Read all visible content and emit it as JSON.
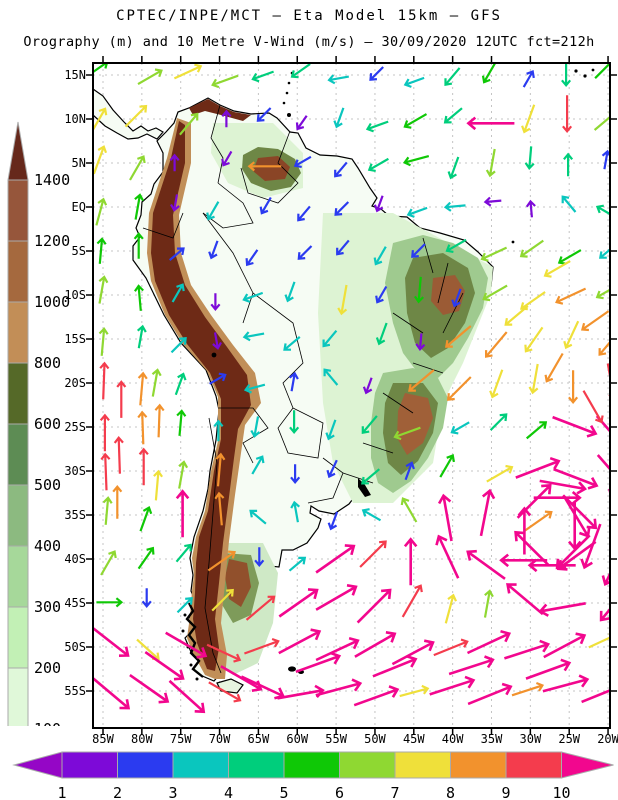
{
  "header": {
    "title_line1": "CPTEC/INPE/MCT —  Eta Model 15km — GFS",
    "title_line2": "Orography (m) and 10 Metre V-Wind (m/s) — 30/09/2020 12UTC fct=212h"
  },
  "elevation_legend": {
    "unit": "m",
    "labels": [
      "1400",
      "1200",
      "1000",
      "800",
      "600",
      "500",
      "400",
      "300",
      "200",
      "100"
    ],
    "segment_colors": [
      "#96563B",
      "#A5693E",
      "#C28E57",
      "#556928",
      "#5D8C54",
      "#8CBA80",
      "#A6D89A",
      "#C2F0B5",
      "#E0F8D9"
    ],
    "top_arrow_color": "#66281B",
    "bottom_arrow_color": "#FFFFFF",
    "border_color": "#AAAAAA"
  },
  "wind_legend": {
    "unit": "m/s",
    "labels": [
      "1",
      "2",
      "3",
      "4",
      "5",
      "6",
      "7",
      "8",
      "9",
      "10"
    ],
    "segment_colors": [
      "#7D0AD8",
      "#2B3BF0",
      "#0AC6BE",
      "#00CE7C",
      "#0FC806",
      "#8FD832",
      "#EFE03A",
      "#F2922D",
      "#F43C4D"
    ],
    "left_arrow_color": "#9506C6",
    "right_arrow_color": "#F2078E",
    "border_color": "#AAAAAA"
  },
  "map": {
    "lat_labels": [
      "15N",
      "10N",
      "5N",
      "EQ",
      "5S",
      "10S",
      "15S",
      "20S",
      "25S",
      "30S",
      "35S",
      "40S",
      "45S",
      "50S",
      "55S"
    ],
    "lon_labels": [
      "85W",
      "80W",
      "75W",
      "70W",
      "65W",
      "60W",
      "55W",
      "50W",
      "45W",
      "40W",
      "35W",
      "30W",
      "25W",
      "20W"
    ],
    "grid_color": "#C4C4C4"
  },
  "chart_data": {
    "type": "map",
    "subtype": "vector-field-over-orography",
    "source": "CPTEC/INPE/MCT",
    "model": "Eta Model 15km",
    "boundary_driver": "GFS",
    "shaded_field": "Orography (m)",
    "vector_field": "10 Metre V-Wind (m/s)",
    "valid_time": "30/09/2020 12UTC",
    "forecast": "fct=212h",
    "lat_range": [
      "15N",
      "55S"
    ],
    "lon_range": [
      "85W",
      "20W"
    ],
    "orography_scale_m": [
      100,
      200,
      300,
      400,
      500,
      600,
      800,
      1000,
      1200,
      1400
    ],
    "wind_speed_scale_ms": [
      1,
      2,
      3,
      4,
      5,
      6,
      7,
      8,
      9,
      10
    ],
    "features": {
      "pacific_coastal_jet": "8-10 m/s northward arrows off Chile/Peru coast",
      "amazon_interior": "weak 1-3 m/s southward arrows (violet/blue/cyan)",
      "atlantic_trades": "4-8 m/s southwestward arrows off NE Brazil",
      "south_atlantic_cyclone": "clockwise >10 m/s (magenta) vortex near 27.5W 36.5S",
      "southern_westerlies": ">10 m/s magenta arrows south of 45S",
      "andes": "dark brown orography band above 1400 m"
    },
    "wind_arrows_format": "[lon_deg_W, lat_deg, direction_deg_math(0=E,90=N), speed_class_1_to_10]",
    "wind_arrows": [
      [
        85,
        15,
        35,
        5
      ],
      [
        80,
        15,
        30,
        6
      ],
      [
        75,
        15,
        25,
        7
      ],
      [
        70,
        15,
        200,
        6
      ],
      [
        65,
        15,
        200,
        4
      ],
      [
        60,
        15,
        215,
        4
      ],
      [
        55,
        15,
        190,
        3
      ],
      [
        50,
        15,
        225,
        2
      ],
      [
        45,
        15,
        200,
        3
      ],
      [
        40,
        15,
        230,
        4
      ],
      [
        35,
        15,
        240,
        5
      ],
      [
        30,
        15,
        60,
        2
      ],
      [
        25,
        15,
        270,
        4
      ],
      [
        20,
        15,
        45,
        5
      ],
      [
        85,
        10,
        60,
        7
      ],
      [
        80,
        10,
        45,
        7
      ],
      [
        75,
        10,
        50,
        6
      ],
      [
        70,
        10,
        90,
        1
      ],
      [
        65,
        10,
        225,
        2
      ],
      [
        60,
        10,
        235,
        1
      ],
      [
        55,
        10,
        250,
        3
      ],
      [
        50,
        10,
        200,
        4
      ],
      [
        45,
        10,
        210,
        5
      ],
      [
        40,
        10,
        220,
        4
      ],
      [
        35,
        10,
        180,
        10
      ],
      [
        30,
        10,
        250,
        7
      ],
      [
        25,
        10,
        270,
        9
      ],
      [
        20,
        10,
        40,
        6
      ],
      [
        85,
        5,
        70,
        7
      ],
      [
        80,
        5,
        60,
        6
      ],
      [
        75,
        5,
        90,
        1
      ],
      [
        70,
        5,
        240,
        1
      ],
      [
        65,
        5,
        180,
        8
      ],
      [
        60,
        5,
        210,
        2
      ],
      [
        55,
        5,
        230,
        2
      ],
      [
        50,
        5,
        210,
        4
      ],
      [
        45,
        5,
        195,
        5
      ],
      [
        40,
        5,
        250,
        4
      ],
      [
        35,
        5,
        260,
        6
      ],
      [
        30,
        5,
        265,
        4
      ],
      [
        25,
        5,
        90,
        4
      ],
      [
        20,
        5,
        80,
        2
      ],
      [
        85,
        0,
        75,
        6
      ],
      [
        80,
        0,
        80,
        5
      ],
      [
        75,
        0,
        260,
        1
      ],
      [
        70,
        0,
        240,
        3
      ],
      [
        65,
        0,
        240,
        2
      ],
      [
        60,
        0,
        230,
        2
      ],
      [
        55,
        0,
        225,
        2
      ],
      [
        50,
        0,
        250,
        1
      ],
      [
        45,
        0,
        200,
        3
      ],
      [
        40,
        0,
        185,
        3
      ],
      [
        35,
        0,
        185,
        1
      ],
      [
        30,
        0,
        95,
        1
      ],
      [
        25,
        0,
        130,
        3
      ],
      [
        20,
        0,
        150,
        4
      ],
      [
        85,
        -5,
        85,
        5
      ],
      [
        80,
        -5,
        90,
        5
      ],
      [
        75,
        -5,
        40,
        2
      ],
      [
        70,
        -5,
        250,
        2
      ],
      [
        65,
        -5,
        235,
        2
      ],
      [
        60,
        -5,
        225,
        2
      ],
      [
        55,
        -5,
        230,
        2
      ],
      [
        50,
        -5,
        240,
        3
      ],
      [
        45,
        -5,
        225,
        2
      ],
      [
        40,
        -5,
        210,
        4
      ],
      [
        35,
        -5,
        205,
        6
      ],
      [
        30,
        -5,
        215,
        6
      ],
      [
        25,
        -5,
        210,
        5
      ],
      [
        20,
        -5,
        220,
        3
      ],
      [
        85,
        -10,
        80,
        6
      ],
      [
        80,
        -10,
        95,
        5
      ],
      [
        75,
        -10,
        60,
        3
      ],
      [
        70,
        -10,
        270,
        1
      ],
      [
        65,
        -10,
        200,
        3
      ],
      [
        60,
        -10,
        250,
        3
      ],
      [
        55,
        -10,
        260,
        7
      ],
      [
        50,
        -10,
        240,
        2
      ],
      [
        45,
        -10,
        265,
        5
      ],
      [
        40,
        -10,
        250,
        2
      ],
      [
        35,
        -10,
        210,
        6
      ],
      [
        30,
        -10,
        215,
        7
      ],
      [
        25,
        -10,
        205,
        8
      ],
      [
        20,
        -10,
        210,
        6
      ],
      [
        85,
        -15,
        85,
        6
      ],
      [
        80,
        -15,
        80,
        4
      ],
      [
        75,
        -15,
        45,
        3
      ],
      [
        70,
        -15,
        280,
        1
      ],
      [
        65,
        -15,
        190,
        3
      ],
      [
        60,
        -15,
        220,
        3
      ],
      [
        55,
        -15,
        230,
        3
      ],
      [
        50,
        -15,
        250,
        4
      ],
      [
        45,
        -15,
        265,
        1
      ],
      [
        40,
        -15,
        220,
        8
      ],
      [
        35,
        -15,
        230,
        8
      ],
      [
        30,
        -15,
        235,
        7
      ],
      [
        25,
        -15,
        245,
        7
      ],
      [
        20,
        -15,
        230,
        8
      ],
      [
        85,
        -20,
        88,
        9
      ],
      [
        80,
        -20,
        85,
        8
      ],
      [
        75,
        -20,
        70,
        4
      ],
      [
        70,
        -20,
        30,
        2
      ],
      [
        65,
        -20,
        195,
        3
      ],
      [
        60,
        -20,
        80,
        2
      ],
      [
        55,
        -20,
        130,
        3
      ],
      [
        50,
        -20,
        250,
        1
      ],
      [
        45,
        -20,
        220,
        8
      ],
      [
        40,
        -20,
        225,
        8
      ],
      [
        35,
        -20,
        250,
        7
      ],
      [
        30,
        -20,
        260,
        7
      ],
      [
        25,
        -20,
        270,
        8
      ],
      [
        20,
        -20,
        280,
        9
      ],
      [
        85,
        -25,
        90,
        9
      ],
      [
        80,
        -25,
        92,
        8
      ],
      [
        75,
        -25,
        85,
        5
      ],
      [
        70,
        -25,
        90,
        3
      ],
      [
        65,
        -25,
        260,
        3
      ],
      [
        60,
        -25,
        270,
        4
      ],
      [
        55,
        -25,
        250,
        3
      ],
      [
        50,
        -25,
        230,
        4
      ],
      [
        45,
        -25,
        200,
        6
      ],
      [
        40,
        -25,
        210,
        3
      ],
      [
        35,
        -25,
        45,
        4
      ],
      [
        30,
        -25,
        40,
        5
      ],
      [
        25,
        -25,
        339,
        10
      ],
      [
        20,
        -25,
        311,
        10
      ],
      [
        85,
        -30,
        92,
        9
      ],
      [
        80,
        -30,
        90,
        9
      ],
      [
        75,
        -30,
        80,
        6
      ],
      [
        70,
        -30,
        85,
        8
      ],
      [
        65,
        -30,
        60,
        3
      ],
      [
        60,
        -30,
        270,
        2
      ],
      [
        55,
        -30,
        245,
        2
      ],
      [
        50,
        -30,
        220,
        4
      ],
      [
        45,
        -30,
        70,
        2
      ],
      [
        40,
        -30,
        60,
        5
      ],
      [
        35,
        -30,
        30,
        7
      ],
      [
        30,
        -30,
        21,
        10
      ],
      [
        25,
        -30,
        339,
        10
      ],
      [
        20,
        -30,
        311,
        10
      ],
      [
        85,
        -35,
        85,
        6
      ],
      [
        80,
        -35,
        70,
        5
      ],
      [
        75,
        -35,
        90,
        10
      ],
      [
        70,
        -35,
        95,
        8
      ],
      [
        65,
        -35,
        140,
        3
      ],
      [
        60,
        -35,
        100,
        3
      ],
      [
        55,
        -35,
        250,
        2
      ],
      [
        50,
        -35,
        150,
        3
      ],
      [
        45,
        -35,
        120,
        6
      ],
      [
        40,
        -35,
        100,
        10
      ],
      [
        35,
        -35,
        79,
        10
      ],
      [
        30,
        -35,
        35,
        8
      ],
      [
        25,
        -35,
        301,
        10
      ],
      [
        20,
        -35,
        281,
        10
      ],
      [
        85,
        -40,
        60,
        6
      ],
      [
        80,
        -40,
        55,
        5
      ],
      [
        75,
        -40,
        50,
        4
      ],
      [
        70,
        -40,
        35,
        8
      ],
      [
        65,
        -40,
        270,
        2
      ],
      [
        60,
        -40,
        40,
        3
      ],
      [
        55,
        -40,
        35,
        10
      ],
      [
        50,
        -40,
        45,
        9
      ],
      [
        45,
        -40,
        90,
        10
      ],
      [
        40,
        -40,
        115,
        10
      ],
      [
        35,
        -40,
        144,
        10
      ],
      [
        30,
        -40,
        180,
        10
      ],
      [
        25,
        -40,
        216,
        10
      ],
      [
        20,
        -40,
        245,
        10
      ],
      [
        85,
        -45,
        0,
        5
      ],
      [
        80,
        -45,
        270,
        2
      ],
      [
        75,
        -45,
        45,
        3
      ],
      [
        70,
        -45,
        45,
        7
      ],
      [
        65,
        -45,
        40,
        9
      ],
      [
        60,
        -45,
        35,
        10
      ],
      [
        55,
        -45,
        30,
        10
      ],
      [
        50,
        -45,
        45,
        10
      ],
      [
        45,
        -45,
        60,
        9
      ],
      [
        40,
        -45,
        75,
        7
      ],
      [
        35,
        -45,
        80,
        6
      ],
      [
        30,
        -45,
        140,
        10
      ],
      [
        25,
        -45,
        190,
        10
      ],
      [
        20,
        -45,
        230,
        10
      ],
      [
        85,
        -50,
        322,
        10
      ],
      [
        80,
        -50,
        318,
        7
      ],
      [
        75,
        -50,
        330,
        10
      ],
      [
        70,
        -50,
        335,
        9
      ],
      [
        65,
        -50,
        20,
        9
      ],
      [
        60,
        -50,
        28,
        10
      ],
      [
        55,
        -50,
        25,
        10
      ],
      [
        50,
        -50,
        30,
        10
      ],
      [
        45,
        -50,
        28,
        10
      ],
      [
        40,
        -50,
        22,
        9
      ],
      [
        35,
        -50,
        25,
        10
      ],
      [
        30,
        -50,
        18,
        10
      ],
      [
        25,
        -50,
        28,
        10
      ],
      [
        20,
        -50,
        25,
        7
      ],
      [
        85,
        -55,
        320,
        10
      ],
      [
        80,
        -55,
        325,
        10
      ],
      [
        75,
        -55,
        318,
        10
      ],
      [
        70,
        -55,
        330,
        9
      ],
      [
        65,
        -55,
        335,
        10
      ],
      [
        60,
        -55,
        10,
        10
      ],
      [
        55,
        -55,
        15,
        10
      ],
      [
        50,
        -55,
        20,
        10
      ],
      [
        45,
        -55,
        15,
        7
      ],
      [
        40,
        -55,
        18,
        10
      ],
      [
        35,
        -55,
        22,
        10
      ],
      [
        30,
        -55,
        18,
        8
      ],
      [
        25,
        -55,
        15,
        10
      ],
      [
        20,
        -55,
        22,
        10
      ],
      [
        23.5,
        -36.5,
        270,
        10
      ],
      [
        24.7,
        -34,
        315,
        10
      ],
      [
        27.5,
        -33,
        0,
        10
      ],
      [
        30.3,
        -34,
        45,
        10
      ],
      [
        31.4,
        -36.5,
        90,
        10
      ],
      [
        30.3,
        -39,
        135,
        10
      ],
      [
        27.5,
        -40,
        180,
        10
      ],
      [
        24.7,
        -39,
        225,
        10
      ],
      [
        26,
        -32,
        350,
        10
      ],
      [
        22,
        -38,
        250,
        10
      ],
      [
        82.5,
        -22,
        90,
        9
      ],
      [
        77.5,
        -25,
        88,
        8
      ],
      [
        82.5,
        -28,
        92,
        9
      ],
      [
        77.5,
        -32,
        85,
        7
      ],
      [
        82.5,
        -33,
        90,
        8
      ],
      [
        77.5,
        -20,
        80,
        6
      ],
      [
        27.5,
        -7.5,
        210,
        7
      ],
      [
        22.5,
        -12.5,
        215,
        8
      ],
      [
        32.5,
        -12.5,
        220,
        7
      ],
      [
        27.5,
        -17.5,
        240,
        8
      ],
      [
        22.5,
        -22.5,
        300,
        9
      ],
      [
        77.5,
        -52.5,
        325,
        10
      ],
      [
        67.5,
        -53,
        330,
        10
      ],
      [
        57.5,
        -52,
        20,
        10
      ],
      [
        47.5,
        -53,
        22,
        10
      ],
      [
        37.5,
        -52,
        18,
        10
      ],
      [
        27.5,
        -53,
        20,
        10
      ]
    ]
  }
}
